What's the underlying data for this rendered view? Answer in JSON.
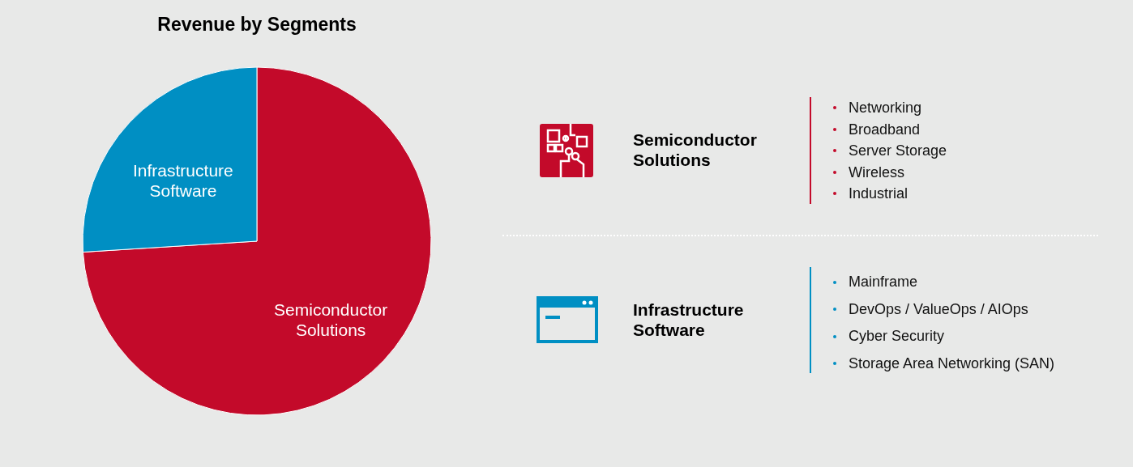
{
  "chart_data": [
    {
      "type": "pie",
      "title": "Revenue by Segments",
      "categories": [
        "Semiconductor Solutions",
        "Infrastructure Software"
      ],
      "values": [
        74,
        26
      ],
      "colors": [
        "#c30a2a",
        "#008fc3"
      ]
    },
    {
      "type": "other",
      "title": "Semiconductor Solutions",
      "color": "#c30a2a",
      "annotations": [
        "Networking",
        "Broadband",
        "Server Storage",
        "Wireless",
        "Industrial"
      ]
    },
    {
      "type": "other",
      "title": "Infrastructure Software",
      "color": "#008fc3",
      "annotations": [
        "Mainframe",
        "DevOps / ValueOps / AIOps",
        "Cyber Security",
        "Storage Area Networking (SAN)"
      ]
    }
  ]
}
